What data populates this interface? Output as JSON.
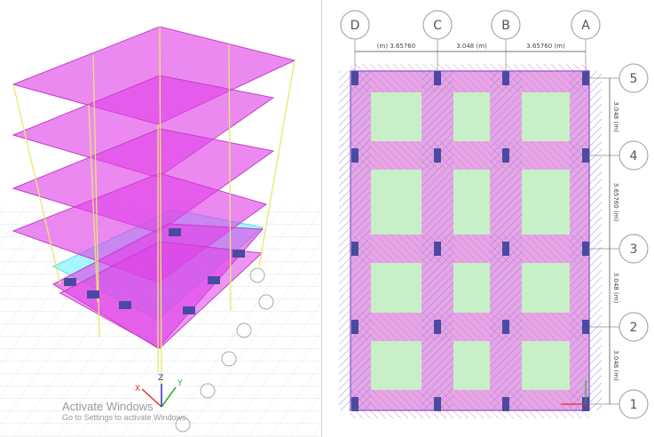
{
  "grid": {
    "columns": [
      "D",
      "C",
      "B",
      "A"
    ],
    "rows": [
      "5",
      "4",
      "3",
      "2",
      "1"
    ],
    "x_spacing_labels": [
      "(m) 3.65760",
      "3.048 (m)",
      "3.65760 (m)"
    ],
    "y_spacing_labels": [
      "3.048 (m)",
      "3.65760 (m)",
      "3.048 (m)",
      "3.048 (m)"
    ]
  },
  "axes": {
    "x": "X",
    "y": "Y",
    "z": "Z"
  },
  "watermark": {
    "title": "Activate Windows",
    "subtitle": "Go to Settings to activate Windows."
  },
  "colors": {
    "slab": "#e040e8",
    "column_line": "#e8e86a",
    "cyan_slab": "#5ef0ff",
    "column_section": "#4a4aa0",
    "mesh_green": "#c8f0c8",
    "mesh_pink": "#e6a6e6"
  }
}
